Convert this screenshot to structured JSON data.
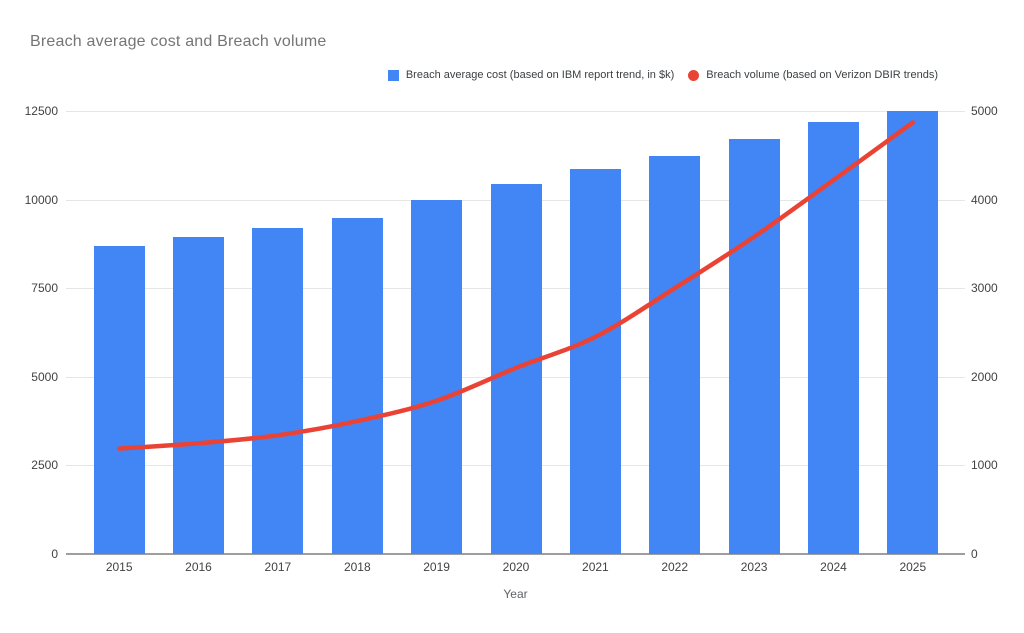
{
  "title": "Breach average cost and Breach volume",
  "legend": [
    {
      "label": "Breach average cost (based on IBM report trend, in $k)",
      "color": "#4285f4",
      "shape": "square"
    },
    {
      "label": "Breach volume (based on Verizon DBIR trends)",
      "color": "#ea4335",
      "shape": "circle"
    }
  ],
  "chart_data": {
    "type": "bar",
    "subtype": "combo-bar-line",
    "title": "Breach average cost and Breach volume",
    "xlabel": "Year",
    "categories": [
      "2015",
      "2016",
      "2017",
      "2018",
      "2019",
      "2020",
      "2021",
      "2022",
      "2023",
      "2024",
      "2025"
    ],
    "series": [
      {
        "name": "Breach average cost (based on IBM report trend, in $k)",
        "type": "bar",
        "axis": "left",
        "color": "#4285f4",
        "values": [
          8700,
          8950,
          9200,
          9480,
          10000,
          10450,
          10860,
          11230,
          11700,
          12200,
          12500
        ]
      },
      {
        "name": "Breach volume (based on Verizon DBIR trends)",
        "type": "line",
        "axis": "right",
        "color": "#ea4335",
        "values": [
          1190,
          1250,
          1340,
          1500,
          1730,
          2100,
          2450,
          3000,
          3580,
          4220,
          4870
        ]
      }
    ],
    "left_axis": {
      "min": 0,
      "max": 12500,
      "ticks": [
        0,
        2500,
        5000,
        7500,
        10000,
        12500
      ]
    },
    "right_axis": {
      "min": 0,
      "max": 5000,
      "ticks": [
        0,
        1000,
        2000,
        3000,
        4000,
        5000
      ]
    },
    "grid": true,
    "legend_position": "top-right",
    "colors": {
      "grid": "#e6e6e6",
      "axis_line": "#9e9e9e",
      "tick_text": "#424242",
      "title_text": "#757575"
    }
  }
}
